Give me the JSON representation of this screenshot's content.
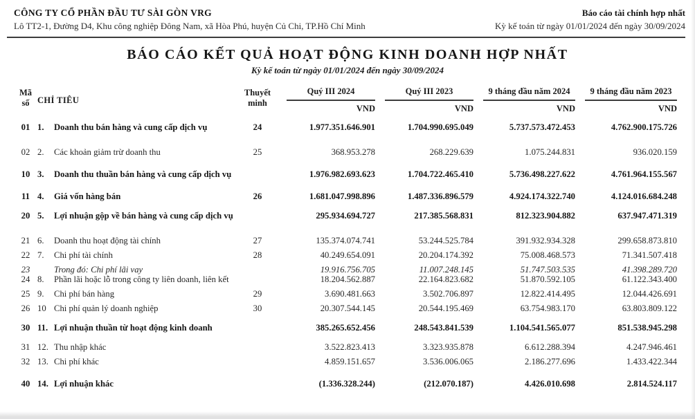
{
  "letterhead": {
    "company_name": "CÔNG TY CỔ PHẦN ĐẦU TƯ SÀI GÒN VRG",
    "company_address": "Lô TT2-1, Đường D4, Khu công nghiệp Đông Nam, xã Hòa Phú, huyện Củ Chi, TP.Hồ Chí Minh",
    "report_type": "Báo cáo tài chính hợp nhất",
    "report_period": "Kỳ kế toán từ ngày 01/01/2024 đến ngày 30/09/2024"
  },
  "title": "BÁO CÁO KẾT QUẢ HOẠT ĐỘNG KINH DOANH HỢP NHẤT",
  "subtitle": "Kỳ kế toán từ ngày 01/01/2024 đến ngày 30/09/2024",
  "table": {
    "headers": {
      "code_line1": "Mã",
      "code_line2": "số",
      "indicator": "CHỈ TIÊU",
      "note_line1": "Thuyết",
      "note_line2": "minh",
      "periods": [
        "Quý III 2024",
        "Quý III 2023",
        "9 tháng đầu năm 2024",
        "9 tháng đầu năm 2023"
      ],
      "unit": "VND"
    },
    "rows": [
      {
        "code": "01",
        "prefix": "1.",
        "label": "Doanh thu bán hàng và cung cấp dịch vụ",
        "note": "24",
        "values": [
          "1.977.351.646.901",
          "1.704.990.695.049",
          "5.737.573.472.453",
          "4.762.900.175.726"
        ],
        "bold": true,
        "italic": false,
        "gap": "none"
      },
      {
        "code": "02",
        "prefix": "2.",
        "label": "Các khoản giảm trừ doanh thu",
        "note": "25",
        "values": [
          "368.953.278",
          "268.229.639",
          "1.075.244.831",
          "936.020.159"
        ],
        "bold": false,
        "italic": false,
        "gap": "xl"
      },
      {
        "code": "10",
        "prefix": "3.",
        "label": "Doanh thu thuần bán hàng và cung cấp dịch vụ",
        "note": "",
        "values": [
          "1.976.982.693.623",
          "1.704.722.465.410",
          "5.736.498.227.622",
          "4.761.964.155.567"
        ],
        "bold": true,
        "italic": false,
        "gap": "lg"
      },
      {
        "code": "11",
        "prefix": "4.",
        "label": "Giá vốn hàng bán",
        "note": "26",
        "values": [
          "1.681.047.998.896",
          "1.487.336.896.579",
          "4.924.174.322.740",
          "4.124.016.684.248"
        ],
        "bold": true,
        "italic": false,
        "gap": "lg"
      },
      {
        "code": "20",
        "prefix": "5.",
        "label": "Lợi nhuận gộp về bán hàng và cung cấp dịch vụ",
        "note": "",
        "values": [
          "295.934.694.727",
          "217.385.568.831",
          "812.323.904.882",
          "637.947.471.319"
        ],
        "bold": true,
        "italic": false,
        "gap": "md"
      },
      {
        "code": "21",
        "prefix": "6.",
        "label": "Doanh thu hoạt động tài chính",
        "note": "27",
        "values": [
          "135.374.074.741",
          "53.244.525.784",
          "391.932.934.328",
          "299.658.873.810"
        ],
        "bold": false,
        "italic": false,
        "gap": "xl"
      },
      {
        "code": "22",
        "prefix": "7.",
        "label": "Chi phí tài chính",
        "note": "28",
        "values": [
          "40.249.654.091",
          "20.204.174.392",
          "75.008.468.573",
          "71.341.507.418"
        ],
        "bold": false,
        "italic": false,
        "gap": "sm"
      },
      {
        "code": "23",
        "prefix": "",
        "label": "Trong đó: Chi phí lãi vay",
        "note": "",
        "values": [
          "19.916.756.705",
          "11.007.248.145",
          "51.747.503.535",
          "41.398.289.720"
        ],
        "bold": false,
        "italic": true,
        "gap": "sm"
      },
      {
        "code": "24",
        "prefix": "8.",
        "label": "Phần lãi hoặc lỗ trong công ty liên doanh, liên kết",
        "note": "",
        "values": [
          "18.204.562.887",
          "22.164.823.682",
          "51.870.592.105",
          "61.122.343.400"
        ],
        "bold": false,
        "italic": false,
        "gap": "none"
      },
      {
        "code": "25",
        "prefix": "9.",
        "label": "Chi phí bán hàng",
        "note": "29",
        "values": [
          "3.690.481.663",
          "3.502.706.897",
          "12.822.414.495",
          "12.044.426.691"
        ],
        "bold": false,
        "italic": false,
        "gap": "sm"
      },
      {
        "code": "26",
        "prefix": "10",
        "label": "Chi phí quản lý doanh nghiệp",
        "note": "30",
        "values": [
          "20.307.544.145",
          "20.544.195.469",
          "63.754.983.170",
          "63.803.809.122"
        ],
        "bold": false,
        "italic": false,
        "gap": "sm"
      },
      {
        "code": "30",
        "prefix": "11.",
        "label": "Lợi nhuận thuần từ hoạt động kinh doanh",
        "note": "",
        "values": [
          "385.265.652.456",
          "248.543.841.539",
          "1.104.541.565.077",
          "851.538.945.298"
        ],
        "bold": true,
        "italic": false,
        "gap": "md"
      },
      {
        "code": "31",
        "prefix": "12.",
        "label": "Thu nhập khác",
        "note": "",
        "values": [
          "3.522.823.413",
          "3.323.935.878",
          "6.612.288.394",
          "4.247.946.461"
        ],
        "bold": false,
        "italic": false,
        "gap": "md"
      },
      {
        "code": "32",
        "prefix": "13.",
        "label": "Chi phí khác",
        "note": "",
        "values": [
          "4.859.151.657",
          "3.536.006.065",
          "2.186.277.696",
          "1.433.422.344"
        ],
        "bold": false,
        "italic": false,
        "gap": "sm"
      },
      {
        "code": "40",
        "prefix": "14.",
        "label": "Lợi nhuận khác",
        "note": "",
        "values": [
          "(1.336.328.244)",
          "(212.070.187)",
          "4.426.010.698",
          "2.814.524.117"
        ],
        "bold": true,
        "italic": false,
        "gap": "lg"
      }
    ]
  }
}
